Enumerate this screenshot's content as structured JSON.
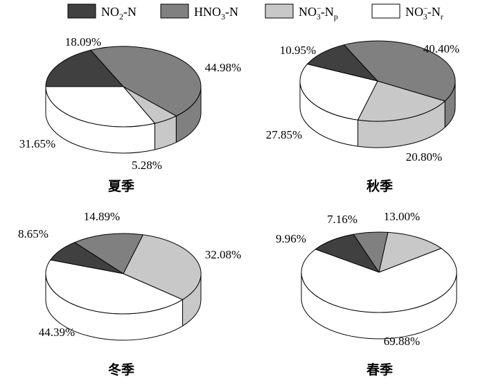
{
  "legend": [
    {
      "key": "NO2-N",
      "main": "NO",
      "sub": "2",
      "tail": "-N",
      "sup": "",
      "sub2": "",
      "color": "#404040"
    },
    {
      "key": "HNO3-N",
      "main": "HNO",
      "sub": "3",
      "tail": "-N",
      "sup": "",
      "sub2": "",
      "color": "#808080"
    },
    {
      "key": "NO3-Np",
      "main": "NO",
      "sub": "3",
      "tail": "-N",
      "sup": "−",
      "sub2": "p",
      "color": "#c8c8c8"
    },
    {
      "key": "NO3-Nr",
      "main": "NO",
      "sub": "3",
      "tail": "-N",
      "sup": "−",
      "sub2": "r",
      "color": "#ffffff"
    }
  ],
  "chart_data": [
    {
      "type": "pie",
      "title": "夏季",
      "categories": [
        "NO2-N",
        "HNO3-N",
        "NO3-Np",
        "NO3-Nr"
      ],
      "values": [
        18.09,
        44.98,
        5.28,
        31.65
      ],
      "labels": [
        "18.09%",
        "44.98%",
        "5.28%",
        "31.65%"
      ]
    },
    {
      "type": "pie",
      "title": "秋季",
      "categories": [
        "NO2-N",
        "HNO3-N",
        "NO3-Np",
        "NO3-Nr"
      ],
      "values": [
        10.95,
        40.4,
        20.8,
        27.85
      ],
      "labels": [
        "10.95%",
        "40.40%",
        "20.80%",
        "27.85%"
      ]
    },
    {
      "type": "pie",
      "title": "冬季",
      "categories": [
        "NO2-N",
        "HNO3-N",
        "NO3-Np",
        "NO3-Nr"
      ],
      "values": [
        8.65,
        14.89,
        32.08,
        44.39
      ],
      "labels": [
        "8.65%",
        "14.89%",
        "32.08%",
        "44.39%"
      ]
    },
    {
      "type": "pie",
      "title": "春季",
      "categories": [
        "NO2-N",
        "HNO3-N",
        "NO3-Np",
        "NO3-Nr"
      ],
      "values": [
        9.96,
        7.16,
        13.0,
        69.88
      ],
      "labels": [
        "9.96%",
        "7.16%",
        "13.00%",
        "69.88%"
      ]
    }
  ]
}
